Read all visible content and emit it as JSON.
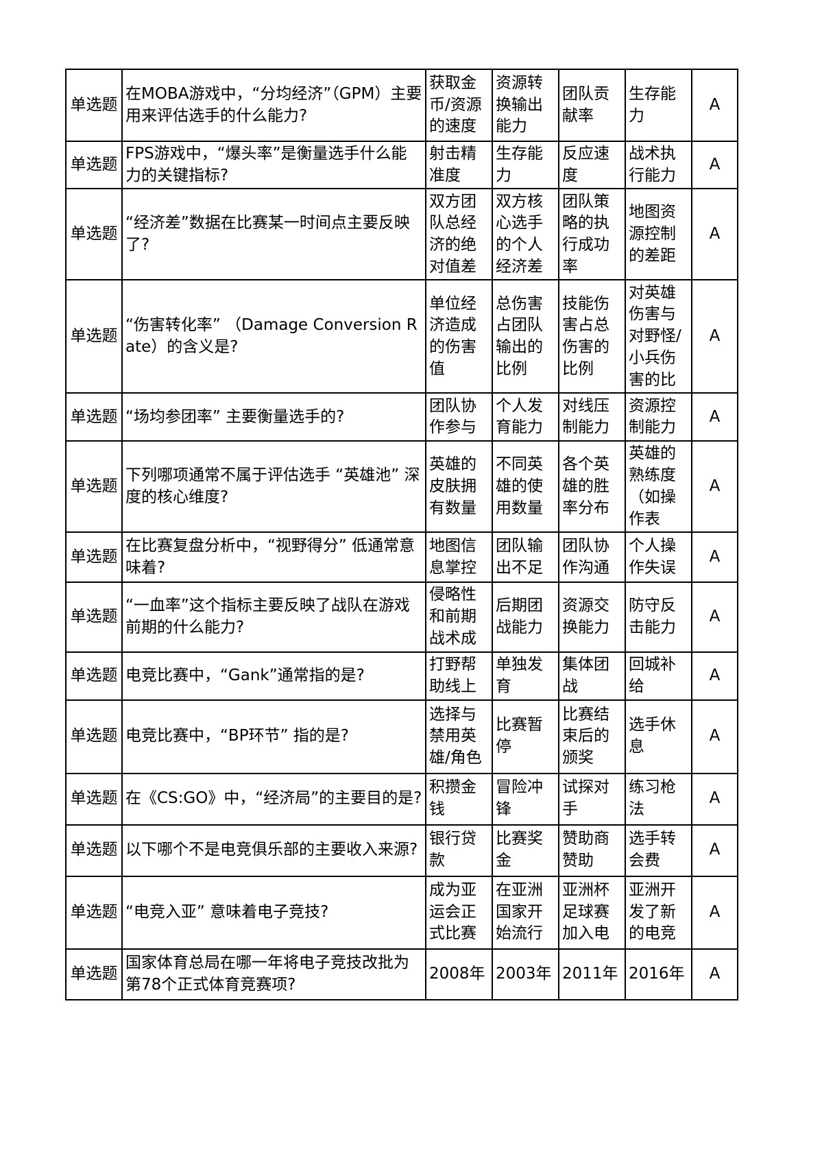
{
  "colors": {
    "border": "#000000",
    "background": "#ffffff",
    "text": "#000000"
  },
  "table": {
    "rows": [
      {
        "type": "单选题",
        "question": "在MOBA游戏中，“分均经济”（GPM）主要用来评估选手的什么能力?",
        "options": [
          "获取金币/资源的速度",
          "资源转换输出能力",
          "团队贡献率",
          "生存能力"
        ],
        "answer": "A"
      },
      {
        "type": "单选题",
        "question": "FPS游戏中，“爆头率”是衡量选手什么能力的关键指标?",
        "options": [
          "射击精准度",
          "生存能力",
          "反应速度",
          "战术执行能力"
        ],
        "answer": "A"
      },
      {
        "type": "单选题",
        "question": "“经济差”数据在比赛某一时间点主要反映了?",
        "options": [
          "双方团队总经济的绝对值差",
          "双方核心选手的个人经济差",
          "团队策略的执行成功率",
          "地图资源控制的差距"
        ],
        "answer": "A"
      },
      {
        "type": "单选题",
        "question": "“伤害转化率” （Damage Conversion Rate）的含义是?",
        "options": [
          "单位经济造成的伤害值",
          "总伤害占团队输出的比例",
          "技能伤害占总伤害的比例",
          "对英雄伤害与对野怪/小兵伤害的比"
        ],
        "answer": "A"
      },
      {
        "type": "单选题",
        "question": "“场均参团率” 主要衡量选手的?",
        "options": [
          "团队协作参与",
          "个人发育能力",
          "对线压制能力",
          "资源控制能力"
        ],
        "answer": "A"
      },
      {
        "type": "单选题",
        "question": "下列哪项通常不属于评估选手 “英雄池” 深度的核心维度?",
        "options": [
          "英雄的皮肤拥有数量",
          "不同英雄的使用数量",
          "各个英雄的胜率分布",
          "英雄的熟练度（如操作表"
        ],
        "answer": "A"
      },
      {
        "type": "单选题",
        "question": "在比赛复盘分析中，“视野得分” 低通常意味着?",
        "options": [
          "地图信息掌控",
          "团队输出不足",
          "团队协作沟通",
          "个人操作失误"
        ],
        "answer": "A"
      },
      {
        "type": "单选题",
        "question": "“一血率”这个指标主要反映了战队在游戏前期的什么能力?",
        "options": [
          "侵略性和前期战术成",
          "后期团战能力",
          "资源交换能力",
          "防守反击能力"
        ],
        "answer": "A"
      },
      {
        "type": "单选题",
        "question": "电竞比赛中，“Gank”通常指的是?",
        "options": [
          "打野帮助线上",
          "单独发育",
          "集体团战",
          "回城补给"
        ],
        "answer": "A"
      },
      {
        "type": "单选题",
        "question": "电竞比赛中，“BP环节” 指的是?",
        "options": [
          "选择与禁用英雄/角色",
          "比赛暂停",
          "比赛结束后的颁奖",
          "选手休息"
        ],
        "answer": "A"
      },
      {
        "type": "单选题",
        "question": "在《CS:GO》中，“经济局”的主要目的是?",
        "options": [
          "积攒金钱",
          "冒险冲锋",
          "试探对手",
          "练习枪法"
        ],
        "answer": "A"
      },
      {
        "type": "单选题",
        "question": "以下哪个不是电竞俱乐部的主要收入来源?",
        "options": [
          "银行贷款",
          "比赛奖金",
          "赞助商赞助",
          "选手转会费"
        ],
        "answer": "A"
      },
      {
        "type": "单选题",
        "question": "“电竞入亚” 意味着电子竞技?",
        "options": [
          "成为亚运会正式比赛",
          "在亚洲国家开始流行",
          "亚洲杯足球赛加入电",
          "亚洲开发了新的电竞"
        ],
        "answer": "A"
      },
      {
        "type": "单选题",
        "question": "国家体育总局在哪一年将电子竞技改批为第78个正式体育竞赛项?",
        "options": [
          "2008年",
          "2003年",
          "2011年",
          "2016年"
        ],
        "answer": "A"
      }
    ]
  }
}
